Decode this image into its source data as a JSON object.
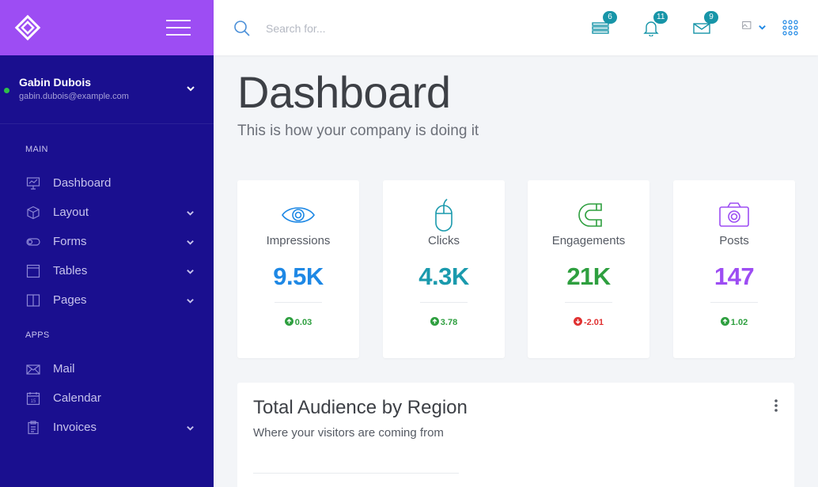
{
  "sidebar": {
    "profile": {
      "name": "Gabin Dubois",
      "email": "gabin.dubois@example.com"
    },
    "sections": {
      "main": "MAIN",
      "apps": "APPS"
    },
    "items": [
      {
        "label": "Dashboard",
        "icon": "presentation-board-icon"
      },
      {
        "label": "Layout",
        "icon": "cube-icon"
      },
      {
        "label": "Forms",
        "icon": "toggle-icon"
      },
      {
        "label": "Tables",
        "icon": "table-icon"
      },
      {
        "label": "Pages",
        "icon": "book-pages-icon"
      },
      {
        "label": "Mail",
        "icon": "envelope-icon"
      },
      {
        "label": "Calendar",
        "icon": "calendar-icon"
      },
      {
        "label": "Invoices",
        "icon": "invoice-clipboard-icon"
      }
    ],
    "calendar_day": "15"
  },
  "topbar": {
    "search_placeholder": "Search for...",
    "badges": {
      "tasks": "6",
      "notifications": "11",
      "messages": "9"
    }
  },
  "page": {
    "title": "Dashboard",
    "subtitle": "This is how your company is doing it"
  },
  "stats": [
    {
      "label": "Impressions",
      "value": "9.5K",
      "delta": "0.03",
      "trend": "up",
      "color": "#1e88e5"
    },
    {
      "label": "Clicks",
      "value": "4.3K",
      "delta": "3.78",
      "trend": "up",
      "color": "#1a9aad"
    },
    {
      "label": "Engagements",
      "value": "21K",
      "delta": "-2.01",
      "trend": "down",
      "color": "#2e9f3f"
    },
    {
      "label": "Posts",
      "value": "147",
      "delta": "1.02",
      "trend": "up",
      "color": "#9d4df3"
    }
  ],
  "colors": {
    "sidebar": "#1a0f8f",
    "brand": "#9d4df3",
    "up": "#2e9f3f",
    "down": "#e03131",
    "badge": "#1795a8"
  },
  "region": {
    "title": "Total Audience by Region",
    "subtitle": "Where your visitors are coming from"
  }
}
